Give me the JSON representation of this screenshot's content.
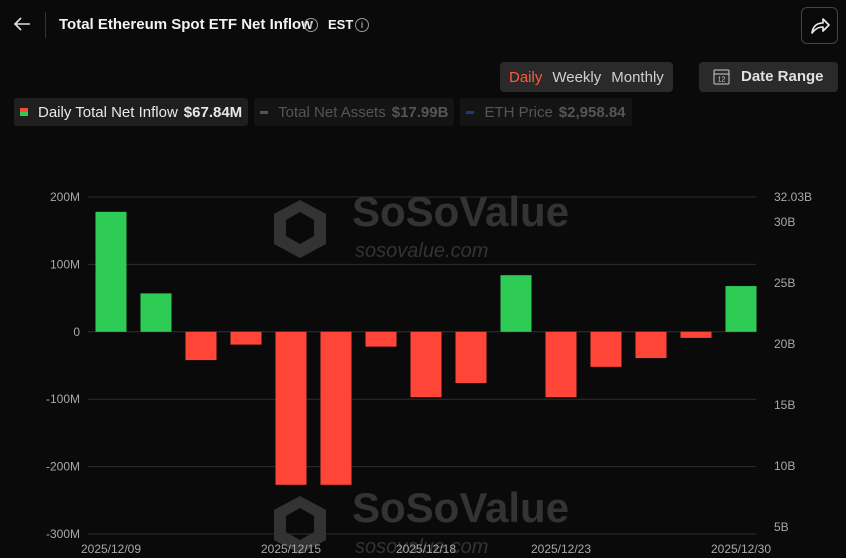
{
  "header": {
    "title": "Total Ethereum Spot ETF Net Inflow",
    "timezone": "EST"
  },
  "tabs": [
    "Daily",
    "Weekly",
    "Monthly"
  ],
  "active_tab": 0,
  "date_range_button": "Date Range",
  "summary": [
    {
      "label": "Daily Total Net Inflow",
      "value": "$67.84M",
      "color": "#2ecc55",
      "active": true
    },
    {
      "label": "Total Net Assets",
      "value": "$17.99B",
      "color": "#555555",
      "active": false
    },
    {
      "label": "ETH Price",
      "value": "$2,958.84",
      "color": "#1f3a73",
      "active": false
    }
  ],
  "watermark": {
    "brand": "SoSoValue",
    "url": "sosovalue.com"
  },
  "chart_data": {
    "type": "bar",
    "categories": [
      "2025/12/09",
      null,
      null,
      null,
      "2025/12/15",
      null,
      null,
      "2025/12/18",
      null,
      null,
      "2025/12/23",
      null,
      null,
      null,
      "2025/12/30"
    ],
    "series": [
      {
        "values": [
          178,
          57,
          -42,
          -19,
          -227,
          -227,
          -22,
          -97,
          -76,
          84,
          -97,
          -52,
          -39,
          -9,
          67.84
        ],
        "color": "#2ecc55",
        "negative_color": "#ff4538"
      }
    ],
    "ylim": [
      -300,
      200
    ],
    "yticks": [
      {
        "value": -300,
        "label": "-300M"
      },
      {
        "value": -200,
        "label": "-200M"
      },
      {
        "value": -100,
        "label": "-100M"
      },
      0,
      {
        "value": 100,
        "label": "100M"
      },
      {
        "value": 200,
        "label": "200M"
      }
    ],
    "y2lim": [
      4.44,
      32.03
    ],
    "y2ticks": [
      {
        "value": 5,
        "label": "5B"
      },
      {
        "value": 10,
        "label": "10B"
      },
      {
        "value": 15,
        "label": "15B"
      },
      {
        "value": 20,
        "label": "20B"
      },
      {
        "value": 25,
        "label": "25B"
      },
      {
        "value": 30,
        "label": "30B"
      },
      {
        "value": 32.03,
        "label": "32.03B"
      }
    ],
    "grid": true
  }
}
